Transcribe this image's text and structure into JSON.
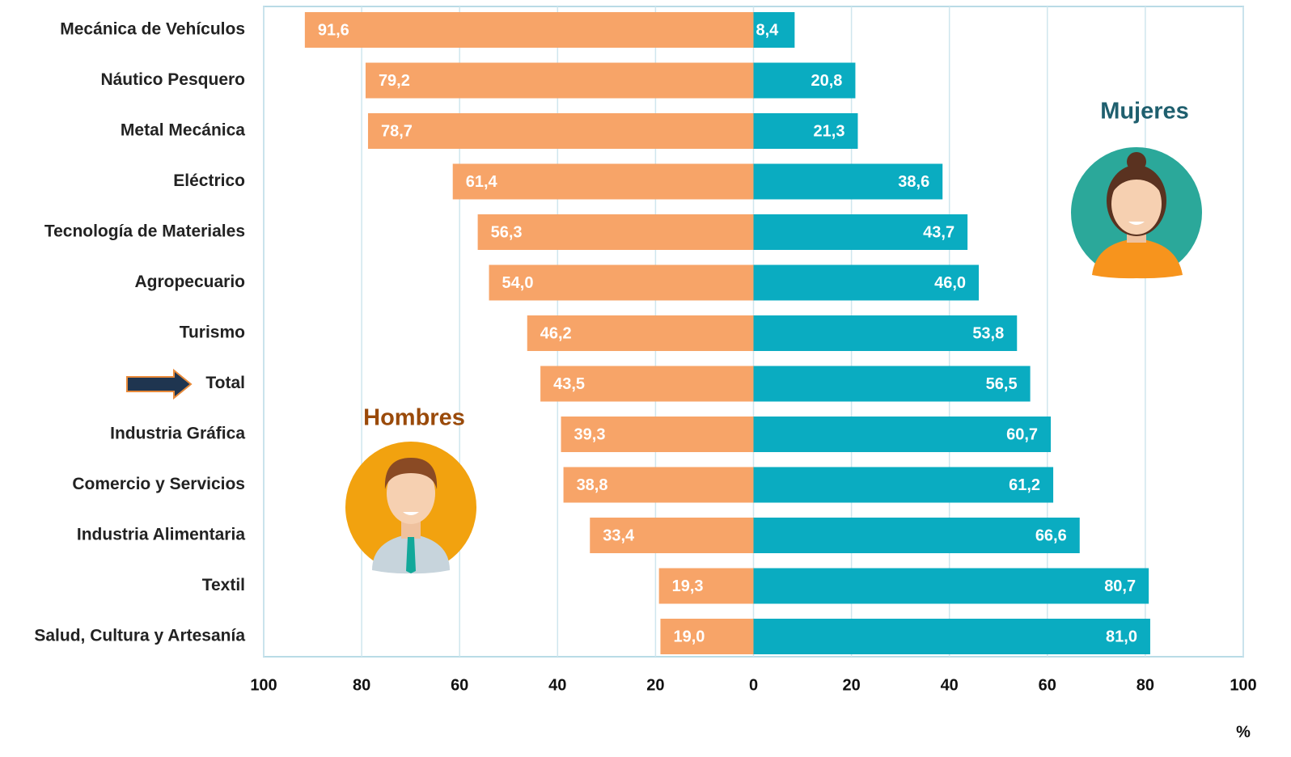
{
  "chart_data": {
    "type": "butterfly-bar",
    "categories": [
      "Mecánica de Vehículos",
      "Náutico Pesquero",
      "Metal Mecánica",
      "Eléctrico",
      "Tecnología de Materiales",
      "Agropecuario",
      "Turismo",
      "Total",
      "Industria Gráfica",
      "Comercio y Servicios",
      "Industria Alimentaria",
      "Textil",
      "Salud, Cultura y Artesanía"
    ],
    "series": [
      {
        "name": "Hombres",
        "color": "#f7a468",
        "values": [
          91.6,
          79.2,
          78.7,
          61.4,
          56.3,
          54.0,
          46.2,
          43.5,
          39.3,
          38.8,
          33.4,
          19.3,
          19.0
        ],
        "value_labels": [
          "91,6",
          "79,2",
          "78,7",
          "61,4",
          "56,3",
          "54,0",
          "46,2",
          "43,5",
          "39,3",
          "38,8",
          "33,4",
          "19,3",
          "19,0"
        ]
      },
      {
        "name": "Mujeres",
        "color": "#0aacc1",
        "values": [
          8.4,
          20.8,
          21.3,
          38.6,
          43.7,
          46.0,
          53.8,
          56.5,
          60.7,
          61.2,
          66.6,
          80.7,
          81.0
        ],
        "value_labels": [
          "8,4",
          "20,8",
          "21,3",
          "38,6",
          "43,7",
          "46,0",
          "53,8",
          "56,5",
          "60,7",
          "61,2",
          "66,6",
          "80,7",
          "81,0"
        ]
      }
    ],
    "x_label": "%",
    "xlim": [
      -100,
      100
    ],
    "xticks": [
      {
        "value": -100,
        "label": "100"
      },
      {
        "value": -80,
        "label": "80"
      },
      {
        "value": -60,
        "label": "60"
      },
      {
        "value": -40,
        "label": "40"
      },
      {
        "value": -20,
        "label": "20"
      },
      0,
      20,
      40,
      60,
      80,
      100
    ],
    "grid": true
  }
}
